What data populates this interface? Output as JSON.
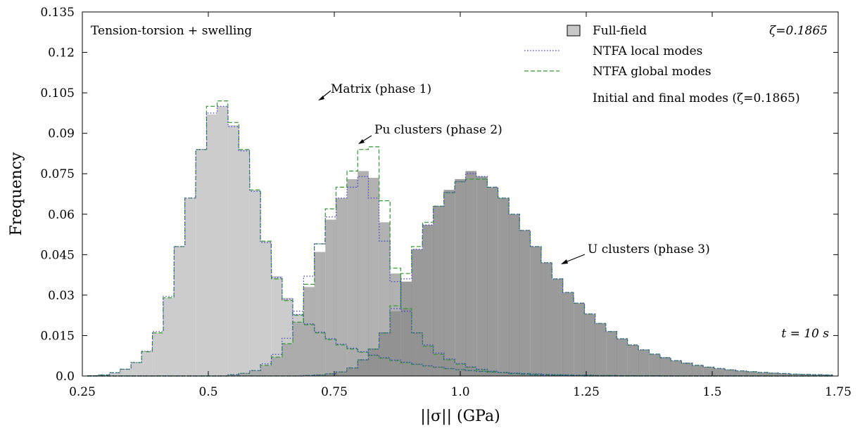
{
  "chart_data": {
    "type": "histogram",
    "xlabel": "||σ|| (GPa)",
    "ylabel": "Frequency",
    "xlim": [
      0.25,
      1.75
    ],
    "ylim": [
      0,
      0.135
    ],
    "bin_width": 0.0214,
    "x_ticks": [
      "0.25",
      "0.5",
      "0.75",
      "1.0",
      "1.25",
      "1.5",
      "1.75"
    ],
    "x_tick_values": [
      0.25,
      0.5,
      0.75,
      1.0,
      1.25,
      1.5,
      1.75
    ],
    "y_ticks": [
      "0.0",
      "0.015",
      "0.03",
      "0.045",
      "0.06",
      "0.075",
      "0.09",
      "0.105",
      "0.12",
      "0.135"
    ],
    "y_tick_values": [
      0,
      0.015,
      0.03,
      0.045,
      0.06,
      0.075,
      0.09,
      0.105,
      0.12,
      0.135
    ],
    "legend": {
      "placement": "top-right",
      "entries": [
        "Full-field",
        "NTFA local modes",
        "NTFA global modes",
        "Initial and final modes (ζ=0.1865)"
      ]
    },
    "colors": {
      "matrix_fill": "#cccccc",
      "pu_fill": "#a9a9a9",
      "u_fill": "#8f8f8f",
      "local": "#3a3ad6",
      "global": "#2e9a2e"
    },
    "annotations": {
      "loading": "Tension-torsion + swelling",
      "zeta": "ζ=0.1865",
      "time": "t = 10 s",
      "matrix": "Matrix (phase 1)",
      "pu": "Pu clusters (phase 2)",
      "u": "U clusters (phase 3)"
    },
    "series": [
      {
        "name": "Matrix (phase 1)",
        "x": [
          0.271,
          0.293,
          0.314,
          0.336,
          0.357,
          0.378,
          0.4,
          0.421,
          0.443,
          0.464,
          0.486,
          0.507,
          0.528,
          0.55,
          0.571,
          0.593,
          0.614,
          0.636,
          0.657,
          0.678,
          0.7,
          0.721,
          0.743,
          0.764,
          0.786,
          0.807,
          0.828,
          0.85,
          0.871,
          0.893,
          0.914,
          0.936,
          0.957,
          0.978,
          1.0,
          1.021,
          1.043,
          1.064,
          1.086,
          1.107,
          1.128,
          1.15,
          1.171,
          1.193,
          1.214,
          1.236,
          1.257,
          1.278,
          1.3,
          1.321,
          1.343,
          1.364,
          1.386,
          1.407,
          1.428,
          1.45,
          1.471,
          1.493,
          1.514,
          1.536,
          1.557,
          1.578,
          1.6,
          1.621,
          1.643,
          1.664,
          1.686,
          1.707,
          1.728
        ],
        "full_field": [
          0.0001,
          0.0004,
          0.0012,
          0.0025,
          0.005,
          0.009,
          0.016,
          0.029,
          0.048,
          0.066,
          0.084,
          0.097,
          0.1,
          0.093,
          0.084,
          0.069,
          0.05,
          0.037,
          0.029,
          0.023,
          0.0195,
          0.0165,
          0.014,
          0.012,
          0.0105,
          0.0092,
          0.008,
          0.0069,
          0.006,
          0.0052,
          0.0045,
          0.0039,
          0.0034,
          0.0029,
          0.0025,
          0.0021,
          0.0018,
          0.0015,
          0.0013,
          0.0011,
          0.0009,
          0.0008,
          0.0006,
          0.0005,
          0.0004,
          0.0003,
          0.0003,
          0.0002,
          0.0002,
          0.0001,
          0.0001,
          0.0001,
          0.0001,
          0.0,
          0.0,
          0.0,
          0.0,
          0.0,
          0.0,
          0.0,
          0.0,
          0.0,
          0.0,
          0.0,
          0.0,
          0.0,
          0.0,
          0.0,
          0.0
        ],
        "ntfa_local": [
          0.0001,
          0.0004,
          0.0012,
          0.0025,
          0.005,
          0.0092,
          0.0165,
          0.0295,
          0.048,
          0.066,
          0.084,
          0.0975,
          0.1,
          0.0925,
          0.0835,
          0.0685,
          0.0495,
          0.0365,
          0.0285,
          0.0228,
          0.0193,
          0.0163,
          0.0138,
          0.0118,
          0.0103,
          0.009,
          0.0078,
          0.0068,
          0.0059,
          0.0051,
          0.0044,
          0.0038,
          0.0033,
          0.0028,
          0.0024,
          0.002,
          0.0017,
          0.0015,
          0.0013,
          0.0011,
          0.0009,
          0.0008,
          0.0006,
          0.0005,
          0.0004,
          0.0003,
          0.0003,
          0.0002,
          0.0002,
          0.0001,
          0.0001,
          0.0001,
          0.0001,
          0.0,
          0.0,
          0.0,
          0.0,
          0.0,
          0.0,
          0.0,
          0.0,
          0.0,
          0.0,
          0.0,
          0.0,
          0.0,
          0.0,
          0.0,
          0.0
        ],
        "ntfa_global": [
          0.0001,
          0.0004,
          0.0012,
          0.0025,
          0.005,
          0.009,
          0.016,
          0.029,
          0.048,
          0.066,
          0.084,
          0.1,
          0.102,
          0.094,
          0.084,
          0.069,
          0.05,
          0.036,
          0.028,
          0.0225,
          0.019,
          0.016,
          0.0135,
          0.0115,
          0.01,
          0.0088,
          0.0076,
          0.0066,
          0.0057,
          0.0049,
          0.0043,
          0.0037,
          0.0032,
          0.0027,
          0.0023,
          0.002,
          0.0017,
          0.0014,
          0.0012,
          0.001,
          0.0009,
          0.0007,
          0.0006,
          0.0005,
          0.0004,
          0.0003,
          0.0003,
          0.0002,
          0.0002,
          0.0001,
          0.0001,
          0.0001,
          0.0001,
          0.0,
          0.0,
          0.0,
          0.0,
          0.0,
          0.0,
          0.0,
          0.0,
          0.0,
          0.0,
          0.0,
          0.0,
          0.0,
          0.0,
          0.0,
          0.0
        ]
      },
      {
        "name": "Pu clusters (phase 2)",
        "x": [
          0.271,
          0.293,
          0.314,
          0.336,
          0.357,
          0.378,
          0.4,
          0.421,
          0.443,
          0.464,
          0.486,
          0.507,
          0.528,
          0.55,
          0.571,
          0.593,
          0.614,
          0.636,
          0.657,
          0.678,
          0.7,
          0.721,
          0.743,
          0.764,
          0.786,
          0.807,
          0.828,
          0.85,
          0.871,
          0.893,
          0.914,
          0.936,
          0.957,
          0.978,
          1.0,
          1.021,
          1.043,
          1.064,
          1.086,
          1.107,
          1.128,
          1.15,
          1.171,
          1.193,
          1.214,
          1.236,
          1.257,
          1.278,
          1.3,
          1.321,
          1.343,
          1.364,
          1.386,
          1.407,
          1.428,
          1.45,
          1.471,
          1.493,
          1.514,
          1.536,
          1.557,
          1.578,
          1.6,
          1.621,
          1.643,
          1.664,
          1.686,
          1.707,
          1.728
        ],
        "full_field": [
          0.0,
          0.0,
          0.0,
          0.0,
          0.0,
          0.0,
          0.0,
          0.0,
          0.0,
          0.0,
          0.0,
          0.0,
          0.0,
          0.0005,
          0.001,
          0.002,
          0.004,
          0.007,
          0.012,
          0.02,
          0.033,
          0.046,
          0.058,
          0.066,
          0.073,
          0.076,
          0.0735,
          0.057,
          0.038,
          0.025,
          0.016,
          0.0115,
          0.0085,
          0.0063,
          0.0046,
          0.0034,
          0.0025,
          0.0018,
          0.0013,
          0.0009,
          0.0006,
          0.0004,
          0.0003,
          0.0002,
          0.0001,
          0.0001,
          0.0,
          0.0,
          0.0,
          0.0,
          0.0,
          0.0,
          0.0,
          0.0,
          0.0,
          0.0,
          0.0,
          0.0,
          0.0,
          0.0,
          0.0,
          0.0,
          0.0,
          0.0,
          0.0,
          0.0,
          0.0,
          0.0,
          0.0
        ],
        "ntfa_local": [
          0.0,
          0.0,
          0.0,
          0.0,
          0.0,
          0.0,
          0.0,
          0.0,
          0.0,
          0.0,
          0.0,
          0.0,
          0.0,
          0.0005,
          0.001,
          0.002,
          0.0045,
          0.008,
          0.014,
          0.024,
          0.037,
          0.049,
          0.059,
          0.066,
          0.07,
          0.074,
          0.066,
          0.05,
          0.035,
          0.024,
          0.016,
          0.0115,
          0.0085,
          0.0063,
          0.0046,
          0.0034,
          0.0025,
          0.0018,
          0.0013,
          0.0009,
          0.0006,
          0.0004,
          0.0003,
          0.0002,
          0.0001,
          0.0001,
          0.0,
          0.0,
          0.0,
          0.0,
          0.0,
          0.0,
          0.0,
          0.0,
          0.0,
          0.0,
          0.0,
          0.0,
          0.0,
          0.0,
          0.0,
          0.0,
          0.0,
          0.0,
          0.0,
          0.0,
          0.0,
          0.0,
          0.0
        ],
        "ntfa_global": [
          0.0,
          0.0,
          0.0,
          0.0,
          0.0,
          0.0,
          0.0,
          0.0,
          0.0,
          0.0,
          0.0,
          0.0,
          0.0,
          0.0005,
          0.001,
          0.002,
          0.004,
          0.007,
          0.012,
          0.02,
          0.034,
          0.049,
          0.062,
          0.07,
          0.076,
          0.084,
          0.085,
          0.065,
          0.04,
          0.025,
          0.016,
          0.011,
          0.008,
          0.006,
          0.0044,
          0.0032,
          0.0023,
          0.0017,
          0.0012,
          0.0008,
          0.0006,
          0.0004,
          0.0003,
          0.0002,
          0.0001,
          0.0001,
          0.0,
          0.0,
          0.0,
          0.0,
          0.0,
          0.0,
          0.0,
          0.0,
          0.0,
          0.0,
          0.0,
          0.0,
          0.0,
          0.0,
          0.0,
          0.0,
          0.0,
          0.0,
          0.0,
          0.0,
          0.0,
          0.0,
          0.0
        ]
      },
      {
        "name": "U clusters (phase 3)",
        "x": [
          0.271,
          0.293,
          0.314,
          0.336,
          0.357,
          0.378,
          0.4,
          0.421,
          0.443,
          0.464,
          0.486,
          0.507,
          0.528,
          0.55,
          0.571,
          0.593,
          0.614,
          0.636,
          0.657,
          0.678,
          0.7,
          0.721,
          0.743,
          0.764,
          0.786,
          0.807,
          0.828,
          0.85,
          0.871,
          0.893,
          0.914,
          0.936,
          0.957,
          0.978,
          1.0,
          1.021,
          1.043,
          1.064,
          1.086,
          1.107,
          1.128,
          1.15,
          1.171,
          1.193,
          1.214,
          1.236,
          1.257,
          1.278,
          1.3,
          1.321,
          1.343,
          1.364,
          1.386,
          1.407,
          1.428,
          1.45,
          1.471,
          1.493,
          1.514,
          1.536,
          1.557,
          1.578,
          1.6,
          1.621,
          1.643,
          1.664,
          1.686,
          1.707,
          1.728
        ],
        "full_field": [
          0.0,
          0.0,
          0.0,
          0.0,
          0.0,
          0.0,
          0.0,
          0.0,
          0.0,
          0.0,
          0.0,
          0.0,
          0.0,
          0.0,
          0.0,
          0.0,
          0.0,
          0.0,
          0.0,
          0.0,
          0.0002,
          0.0004,
          0.0008,
          0.0015,
          0.003,
          0.006,
          0.01,
          0.016,
          0.024,
          0.035,
          0.047,
          0.056,
          0.063,
          0.069,
          0.073,
          0.076,
          0.074,
          0.07,
          0.066,
          0.06,
          0.054,
          0.048,
          0.042,
          0.036,
          0.031,
          0.027,
          0.023,
          0.0195,
          0.0165,
          0.0138,
          0.0115,
          0.0097,
          0.0081,
          0.0068,
          0.0057,
          0.0048,
          0.004,
          0.0033,
          0.0028,
          0.0023,
          0.0019,
          0.0016,
          0.0013,
          0.0011,
          0.0009,
          0.0007,
          0.0006,
          0.0005,
          0.0004
        ],
        "ntfa_local": [
          0.0,
          0.0,
          0.0,
          0.0,
          0.0,
          0.0,
          0.0,
          0.0,
          0.0,
          0.0,
          0.0,
          0.0,
          0.0,
          0.0,
          0.0,
          0.0,
          0.0,
          0.0,
          0.0,
          0.0,
          0.0002,
          0.0004,
          0.0008,
          0.0015,
          0.003,
          0.006,
          0.01,
          0.016,
          0.025,
          0.036,
          0.047,
          0.056,
          0.063,
          0.068,
          0.072,
          0.075,
          0.074,
          0.07,
          0.066,
          0.06,
          0.054,
          0.048,
          0.042,
          0.036,
          0.031,
          0.027,
          0.023,
          0.0195,
          0.0165,
          0.0138,
          0.0115,
          0.0097,
          0.0081,
          0.0068,
          0.0057,
          0.0048,
          0.004,
          0.0033,
          0.0028,
          0.0023,
          0.0019,
          0.0016,
          0.0013,
          0.0011,
          0.0009,
          0.0007,
          0.0006,
          0.0005,
          0.0004
        ],
        "ntfa_global": [
          0.0,
          0.0,
          0.0,
          0.0,
          0.0,
          0.0,
          0.0,
          0.0,
          0.0,
          0.0,
          0.0,
          0.0,
          0.0,
          0.0,
          0.0,
          0.0,
          0.0,
          0.0,
          0.0,
          0.0,
          0.0002,
          0.0004,
          0.0008,
          0.0015,
          0.003,
          0.006,
          0.01,
          0.016,
          0.026,
          0.038,
          0.048,
          0.057,
          0.063,
          0.068,
          0.072,
          0.073,
          0.073,
          0.07,
          0.066,
          0.06,
          0.054,
          0.048,
          0.042,
          0.036,
          0.031,
          0.027,
          0.023,
          0.0195,
          0.0165,
          0.0138,
          0.0115,
          0.0097,
          0.0081,
          0.0068,
          0.0057,
          0.0048,
          0.004,
          0.0033,
          0.0028,
          0.0023,
          0.0019,
          0.0016,
          0.0013,
          0.0011,
          0.0009,
          0.0007,
          0.0006,
          0.0005,
          0.0004
        ]
      }
    ]
  }
}
